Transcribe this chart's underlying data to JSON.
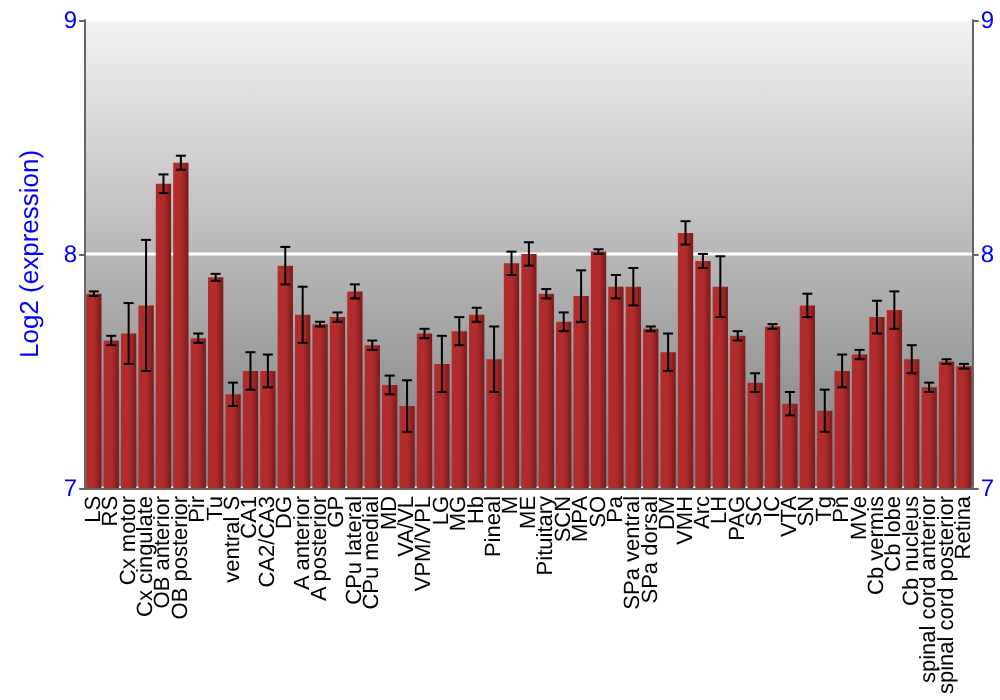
{
  "chart_data": {
    "type": "bar",
    "ylabel": "Log2 (expression)",
    "categories": [
      "LS",
      "RS",
      "Cx motor",
      "Cx cingulate",
      "OB anterior",
      "OB posterior",
      "Pir",
      "Tu",
      "ventral S",
      "CA1",
      "CA2/CA3",
      "DG",
      "A anterior",
      "A posterior",
      "GP",
      "CPu lateral",
      "CPu medial",
      "MD",
      "VA/VL",
      "VPM/VPL",
      "LG",
      "MG",
      "Hb",
      "Pineal",
      "M",
      "ME",
      "Pituitary",
      "SCN",
      "MPA",
      "SO",
      "Pa",
      "SPa ventral",
      "SPa dorsal",
      "DM",
      "VMH",
      "Arc",
      "LH",
      "PAG",
      "SC",
      "IC",
      "VTA",
      "SN",
      "Tg",
      "Pn",
      "MVe",
      "Cb vermis",
      "Cb lobe",
      "Cb nucleus",
      "spinal cord anterior",
      "spinal cord posterior",
      "Retina"
    ],
    "series": [
      {
        "color": "#b22c2c",
        "values": [
          7.83,
          7.63,
          7.66,
          7.78,
          8.3,
          8.39,
          7.64,
          7.9,
          7.4,
          7.5,
          7.5,
          7.95,
          7.74,
          7.7,
          7.73,
          7.84,
          7.61,
          7.44,
          7.35,
          7.66,
          7.53,
          7.67,
          7.74,
          7.55,
          7.96,
          8.0,
          7.83,
          7.71,
          7.82,
          8.01,
          7.86,
          7.86,
          7.68,
          7.58,
          8.09,
          7.97,
          7.86,
          7.65,
          7.45,
          7.69,
          7.36,
          7.78,
          7.33,
          7.5,
          7.57,
          7.73,
          7.76,
          7.55,
          7.43,
          7.54,
          7.52
        ],
        "errors": [
          0.01,
          0.02,
          0.13,
          0.28,
          0.04,
          0.03,
          0.02,
          0.015,
          0.05,
          0.08,
          0.07,
          0.08,
          0.12,
          0.01,
          0.02,
          0.03,
          0.02,
          0.04,
          0.11,
          0.02,
          0.12,
          0.06,
          0.03,
          0.14,
          0.05,
          0.05,
          0.02,
          0.04,
          0.11,
          0.01,
          0.05,
          0.08,
          0.01,
          0.08,
          0.05,
          0.03,
          0.13,
          0.02,
          0.04,
          0.01,
          0.05,
          0.05,
          0.09,
          0.07,
          0.02,
          0.07,
          0.08,
          0.06,
          0.02,
          0.01,
          0.01
        ]
      }
    ],
    "ylim": [
      7,
      9
    ],
    "yticks": [
      7,
      8,
      9
    ],
    "y2lim": [
      7,
      9
    ],
    "y2ticks": [
      7,
      8,
      9
    ],
    "grid": "y"
  }
}
